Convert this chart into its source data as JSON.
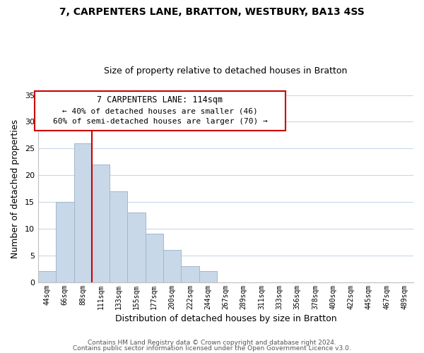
{
  "title_line1": "7, CARPENTERS LANE, BRATTON, WESTBURY, BA13 4SS",
  "title_line2": "Size of property relative to detached houses in Bratton",
  "xlabel": "Distribution of detached houses by size in Bratton",
  "ylabel": "Number of detached properties",
  "bar_labels": [
    "44sqm",
    "66sqm",
    "88sqm",
    "111sqm",
    "133sqm",
    "155sqm",
    "177sqm",
    "200sqm",
    "222sqm",
    "244sqm",
    "267sqm",
    "289sqm",
    "311sqm",
    "333sqm",
    "356sqm",
    "378sqm",
    "400sqm",
    "422sqm",
    "445sqm",
    "467sqm",
    "489sqm"
  ],
  "bar_values": [
    2,
    15,
    26,
    22,
    17,
    13,
    9,
    6,
    3,
    2,
    0,
    0,
    0,
    0,
    0,
    0,
    0,
    0,
    0,
    0,
    0
  ],
  "bar_color": "#c8d8e8",
  "bar_edge_color": "#a0b8cc",
  "vline_color": "#cc0000",
  "ylim": [
    0,
    35
  ],
  "yticks": [
    0,
    5,
    10,
    15,
    20,
    25,
    30,
    35
  ],
  "annotation_title": "7 CARPENTERS LANE: 114sqm",
  "annotation_line1": "← 40% of detached houses are smaller (46)",
  "annotation_line2": "60% of semi-detached houses are larger (70) →",
  "annotation_box_edge": "#cc0000",
  "footer_line1": "Contains HM Land Registry data © Crown copyright and database right 2024.",
  "footer_line2": "Contains public sector information licensed under the Open Government Licence v3.0.",
  "background_color": "#ffffff",
  "grid_color": "#c8d8e8"
}
